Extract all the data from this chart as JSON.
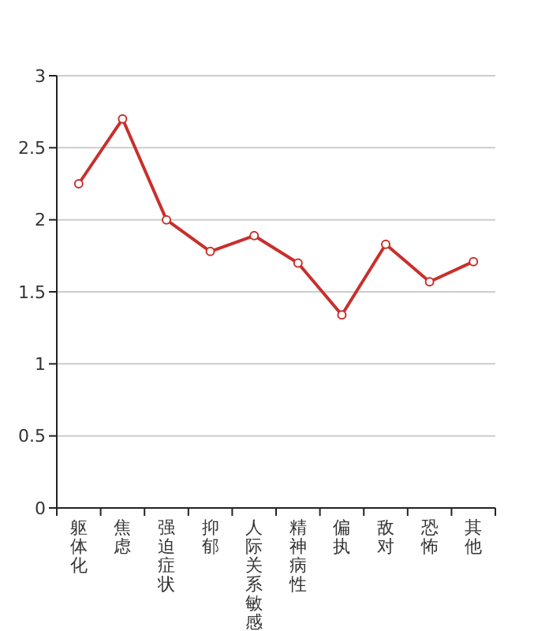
{
  "chart_data": {
    "type": "line",
    "categories": [
      "躯体化",
      "焦虑",
      "强迫症状",
      "抑郁",
      "人际关系敏感",
      "精神病性",
      "偏执",
      "敌对",
      "恐怖",
      "其他"
    ],
    "series": [
      {
        "color": "#c8302c",
        "values": [
          2.25,
          2.7,
          2.0,
          1.78,
          1.89,
          1.7,
          1.34,
          1.83,
          1.57,
          1.71
        ]
      }
    ],
    "ylim": [
      0,
      3
    ],
    "yticks": [
      0,
      0.5,
      1,
      1.5,
      2,
      2.5,
      3
    ],
    "grid": "y",
    "marker": "circle"
  }
}
